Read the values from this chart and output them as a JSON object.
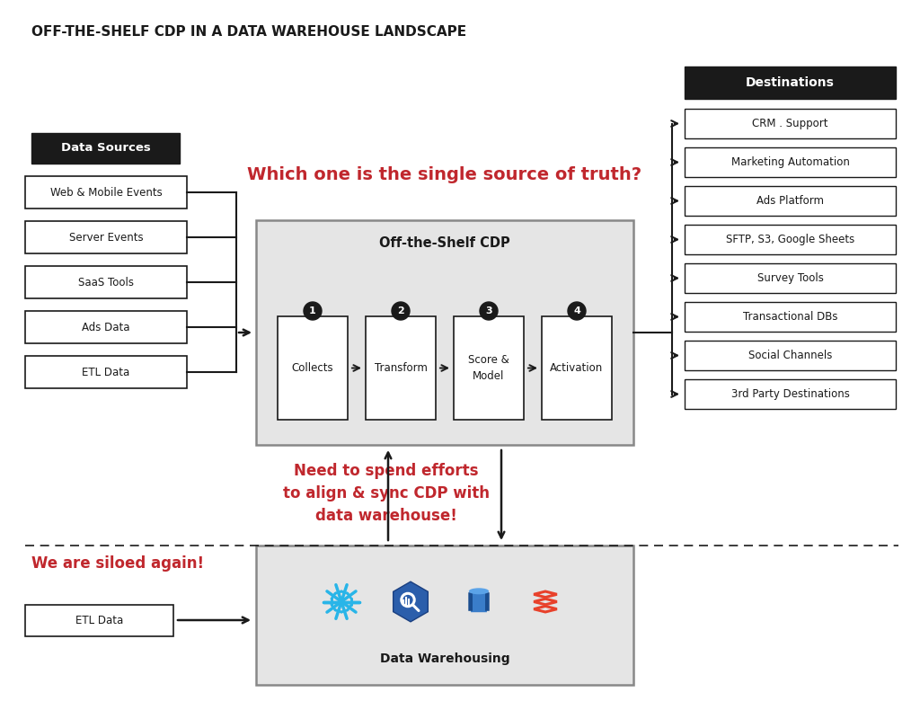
{
  "title": "OFF-THE-SHELF CDP IN A DATA WAREHOUSE LANDSCAPE",
  "background_color": "#ffffff",
  "data_sources_header": "Data Sources",
  "data_sources": [
    "Web & Mobile Events",
    "Server Events",
    "SaaS Tools",
    "Ads Data",
    "ETL Data"
  ],
  "cdp_title": "Off-the-Shelf CDP",
  "cdp_steps": [
    "Collects",
    "Transform",
    "Score &\nModel",
    "Activation"
  ],
  "cdp_step_numbers": [
    "1",
    "2",
    "3",
    "4"
  ],
  "destinations_header": "Destinations",
  "destinations": [
    "CRM . Support",
    "Marketing Automation",
    "Ads Platform",
    "SFTP, S3, Google Sheets",
    "Survey Tools",
    "Transactional DBs",
    "Social Channels",
    "3rd Party Destinations"
  ],
  "question_text": "Which one is the single source of truth?",
  "annotation_text": "Need to spend efforts\nto align & sync CDP with\ndata warehouse!",
  "silo_text": "We are siloed again!",
  "etl_bottom": "ETL Data",
  "warehouse_label": "Data Warehousing",
  "red_color": "#c0272d",
  "black_color": "#1a1a1a",
  "box_bg": "#e5e5e5",
  "white": "#ffffff",
  "grey_border": "#888888",
  "snowflake_color": "#29B5E8",
  "bigquery_color": "#4285F4",
  "redshift_dark": "#1A4D8F",
  "redshift_light": "#4A90D9",
  "dbt_color": "#E8412B"
}
